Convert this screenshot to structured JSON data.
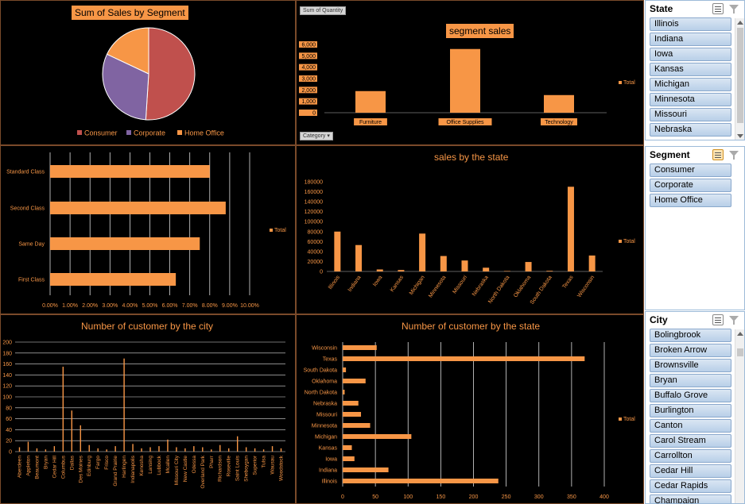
{
  "colors": {
    "accent": "#f79646",
    "consumer": "#c0504d",
    "corporate": "#8064a2",
    "home_office": "#f79646",
    "background": "#000000"
  },
  "pie_panel": {
    "title": "Sum of Sales by Segment"
  },
  "bar_panel": {
    "title": "segment sales",
    "field_button": "Sum of Quantity",
    "category_button": "Category"
  },
  "shipmode_panel": {},
  "state_sales_panel": {
    "title": "sales by the state"
  },
  "city_panel": {
    "title": "Number of customer by the city"
  },
  "state_count_panel": {
    "title": "Number of customer by the state"
  },
  "slicers": {
    "state": {
      "title": "State",
      "items": [
        "Illinois",
        "Indiana",
        "Iowa",
        "Kansas",
        "Michigan",
        "Minnesota",
        "Missouri",
        "Nebraska"
      ]
    },
    "segment": {
      "title": "Segment",
      "items": [
        "Consumer",
        "Corporate",
        "Home Office"
      ]
    },
    "city": {
      "title": "City",
      "items": [
        "Bolingbrook",
        "Broken Arrow",
        "Brownsville",
        "Bryan",
        "Buffalo Grove",
        "Burlington",
        "Canton",
        "Carol Stream",
        "Carrollton",
        "Cedar Hill",
        "Cedar Rapids",
        "Champaign"
      ]
    }
  },
  "chart_data": [
    {
      "type": "pie",
      "title": "Sum of Sales by Segment",
      "categories": [
        "Consumer",
        "Corporate",
        "Home Office"
      ],
      "values": [
        51,
        31,
        18
      ],
      "legend": "bottom"
    },
    {
      "type": "bar",
      "title": "segment sales",
      "categories": [
        "Furniture",
        "Office Supplies",
        "Technology"
      ],
      "series": [
        {
          "name": "Total",
          "values": [
            1900,
            5600,
            1550
          ]
        }
      ],
      "y_ticks": [
        "6,000",
        "5,000",
        "4,000",
        "3,000",
        "2,000",
        "1,000",
        "0"
      ],
      "ylim": [
        0,
        6000
      ],
      "legend": "right"
    },
    {
      "type": "bar",
      "orientation": "horizontal",
      "categories": [
        "Standard Class",
        "Second Class",
        "Same Day",
        "First Class"
      ],
      "series": [
        {
          "name": "Total",
          "values": [
            8.0,
            8.8,
            7.5,
            6.3
          ]
        }
      ],
      "x_ticks": [
        "0.00%",
        "1.00%",
        "2.00%",
        "3.00%",
        "4.00%",
        "5.00%",
        "6.00%",
        "7.00%",
        "8.00%",
        "9.00%",
        "10.00%"
      ],
      "xlim": [
        0,
        10
      ],
      "legend": "right"
    },
    {
      "type": "bar",
      "title": "sales by the state",
      "categories": [
        "Illinois",
        "Indiana",
        "Iowa",
        "Kansas",
        "Michigan",
        "Minnesota",
        "Missouri",
        "Nebraska",
        "North Dakota",
        "Oklahoma",
        "South Dakota",
        "Texas",
        "Wisconsin"
      ],
      "series": [
        {
          "name": "Total",
          "values": [
            80000,
            53000,
            4000,
            2900,
            76000,
            31000,
            22000,
            7500,
            900,
            19000,
            1300,
            170000,
            32000
          ]
        }
      ],
      "y_ticks": [
        "180000",
        "160000",
        "140000",
        "120000",
        "100000",
        "80000",
        "60000",
        "40000",
        "20000",
        "0"
      ],
      "ylim": [
        0,
        180000
      ],
      "legend": "right"
    },
    {
      "type": "bar",
      "title": "Number of customer by the city",
      "categories": [
        "Aberdeen",
        "Appleton",
        "Beaumont",
        "Bryan",
        "Cedar Hill",
        "Columbus",
        "Dallas",
        "Des Moines",
        "Edinburg",
        "Fargo",
        "Frisco",
        "Grand Prairie",
        "Harlingen",
        "Indianapolis",
        "Kenosha",
        "Lansing",
        "Lubbock",
        "Mcallen",
        "Missouri City",
        "New Castle",
        "Odessa",
        "Overland Park",
        "Pharr",
        "Richardson",
        "Roseville",
        "Saint Louis",
        "Sheboygan",
        "Superior",
        "Tulsa",
        "Wausau",
        "Woodstock"
      ],
      "series": [
        {
          "name": "",
          "values": [
            8,
            18,
            6,
            4,
            10,
            155,
            75,
            48,
            12,
            6,
            4,
            10,
            170,
            14,
            6,
            8,
            10,
            22,
            8,
            6,
            10,
            8,
            4,
            12,
            6,
            28,
            8,
            6,
            4,
            10,
            6
          ]
        }
      ],
      "y_ticks": [
        "200",
        "180",
        "160",
        "140",
        "120",
        "100",
        "80",
        "60",
        "40",
        "20",
        "0"
      ],
      "ylim": [
        0,
        200
      ]
    },
    {
      "type": "bar",
      "orientation": "horizontal",
      "title": "Number of customer by the state",
      "categories": [
        "Wisconsin",
        "Texas",
        "South Dakota",
        "Oklahoma",
        "North Dakota",
        "Nebraska",
        "Missouri",
        "Minnesota",
        "Michigan",
        "Kansas",
        "Iowa",
        "Indiana",
        "Illinois"
      ],
      "series": [
        {
          "name": "Total",
          "values": [
            52,
            370,
            5,
            35,
            3,
            24,
            28,
            42,
            105,
            14,
            18,
            70,
            238
          ]
        }
      ],
      "x_ticks": [
        "0",
        "50",
        "100",
        "150",
        "200",
        "250",
        "300",
        "350",
        "400"
      ],
      "xlim": [
        0,
        400
      ],
      "legend": "right"
    }
  ]
}
